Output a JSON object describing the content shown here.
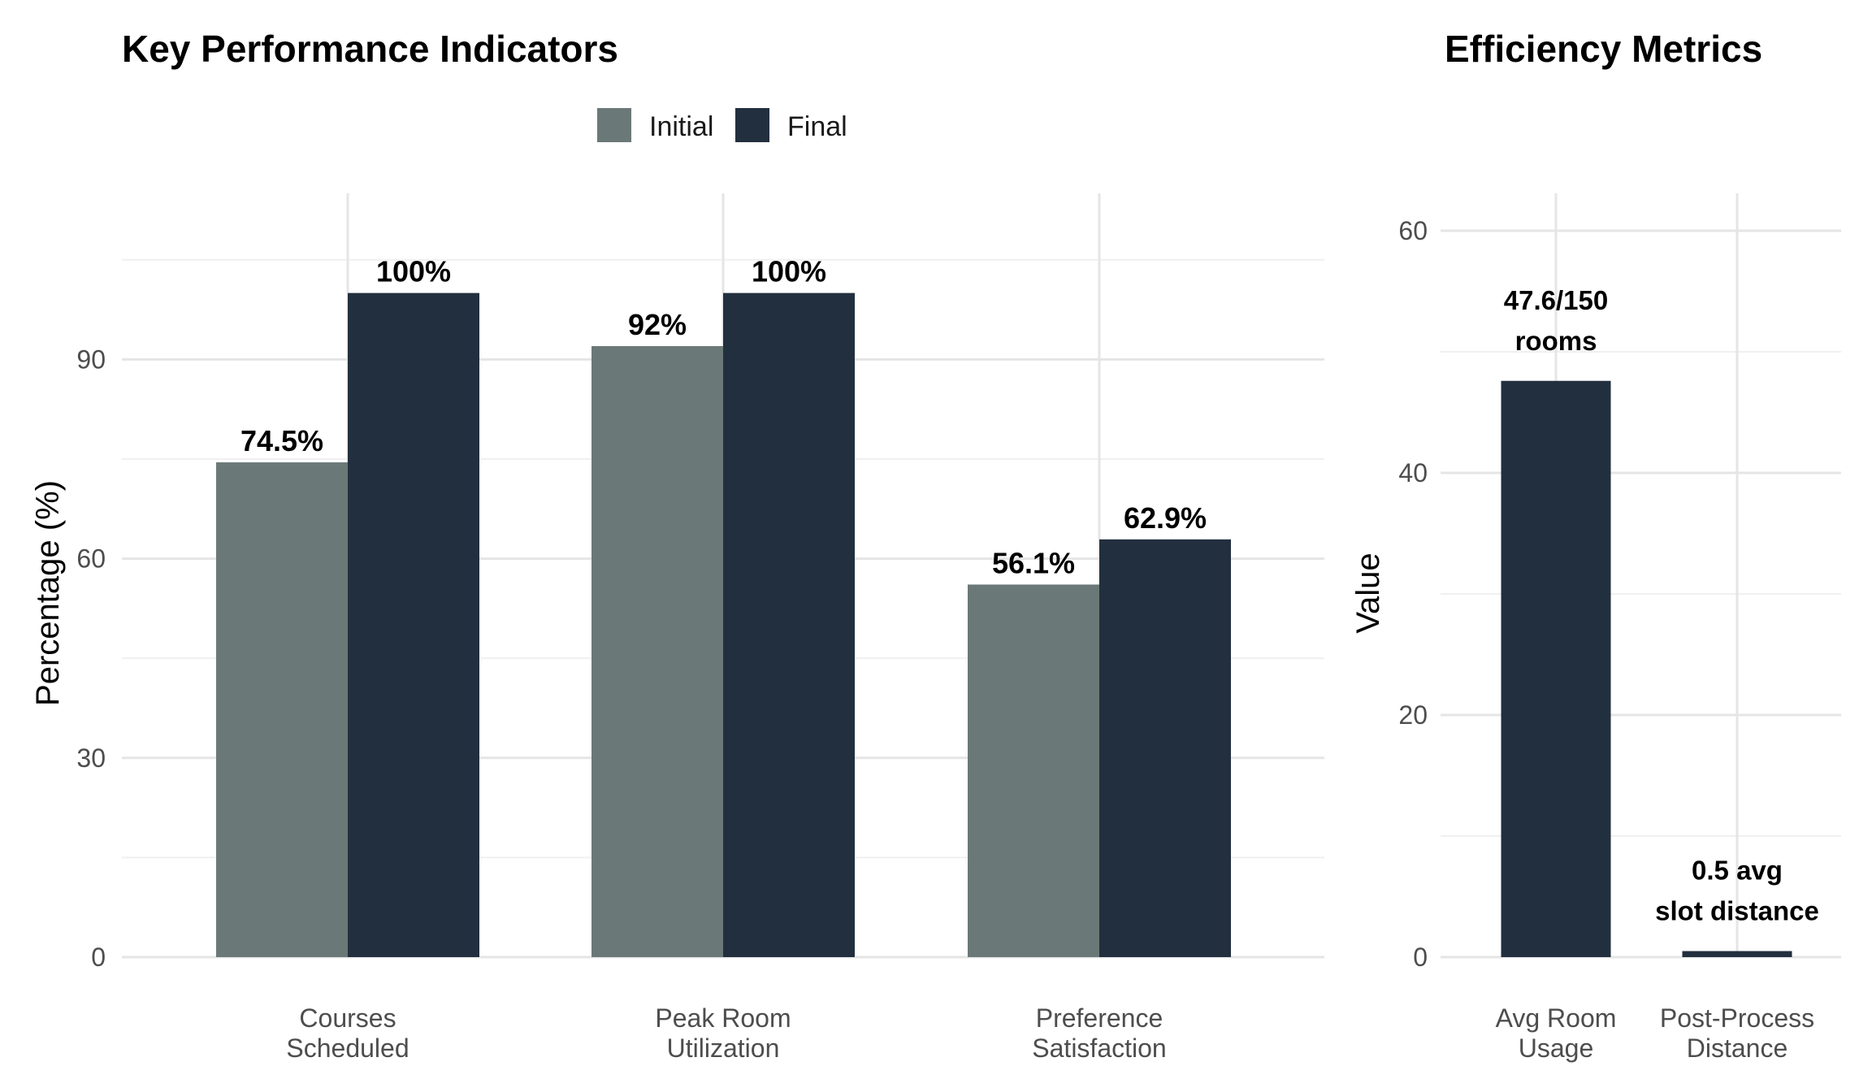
{
  "chart_data": [
    {
      "type": "bar",
      "title": "Key Performance Indicators",
      "xlabel": "",
      "ylabel": "Percentage (%)",
      "ylim": [
        0,
        100
      ],
      "yticks": [
        0,
        30,
        60,
        90
      ],
      "grid": true,
      "legend": "top-center",
      "categories": [
        [
          "Courses",
          "Scheduled"
        ],
        [
          "Peak Room",
          "Utilization"
        ],
        [
          "Preference",
          "Satisfaction"
        ]
      ],
      "series": [
        {
          "name": "Initial",
          "color": "#6b7878",
          "values": [
            74.5,
            92,
            56.1
          ],
          "labels": [
            "74.5%",
            "92%",
            "56.1%"
          ]
        },
        {
          "name": "Final",
          "color": "#222f3e",
          "values": [
            100,
            100,
            62.9
          ],
          "labels": [
            "100%",
            "100%",
            "62.9%"
          ]
        }
      ]
    },
    {
      "type": "bar",
      "title": "Efficiency Metrics",
      "xlabel": "",
      "ylabel": "Value",
      "ylim": [
        0,
        60
      ],
      "yticks": [
        0,
        20,
        40,
        60
      ],
      "grid": true,
      "categories": [
        [
          "Avg Room",
          "Usage"
        ],
        [
          "Post-Process",
          "Distance"
        ]
      ],
      "color": "#222f3e",
      "values": [
        47.6,
        0.5
      ],
      "labels": [
        [
          "47.6/150",
          "rooms"
        ],
        [
          "0.5 avg",
          "slot distance"
        ]
      ]
    }
  ]
}
